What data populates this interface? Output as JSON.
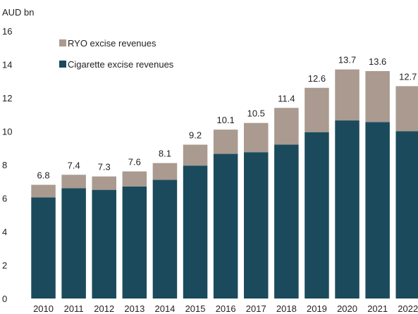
{
  "chart_data": {
    "type": "bar",
    "stacked": true,
    "unit_label": "AUD bn",
    "title": "",
    "xlabel": "",
    "ylabel": "",
    "categories": [
      "2010",
      "2011",
      "2012",
      "2013",
      "2014",
      "2015",
      "2016",
      "2017",
      "2018",
      "2019",
      "2020",
      "2021",
      "2022"
    ],
    "series": [
      {
        "name": "Cigarette excise revenues",
        "color": "#1b4a5c",
        "values": [
          6.05,
          6.6,
          6.5,
          6.7,
          7.1,
          7.95,
          8.65,
          8.75,
          9.2,
          9.95,
          10.65,
          10.55,
          10.0
        ]
      },
      {
        "name": "RYO excise revenues",
        "color": "#aa9a8f",
        "values": [
          0.75,
          0.8,
          0.8,
          0.9,
          1.0,
          1.25,
          1.45,
          1.75,
          2.2,
          2.65,
          3.05,
          3.05,
          2.7
        ]
      }
    ],
    "totals": [
      "6.8",
      "7.4",
      "7.3",
      "7.6",
      "8.1",
      "9.2",
      "10.1",
      "10.5",
      "11.4",
      "12.6",
      "13.7",
      "13.6",
      "12.7"
    ],
    "ylim": [
      0,
      16
    ],
    "yticks": [
      "0",
      "2",
      "4",
      "6",
      "8",
      "10",
      "12",
      "14",
      "16"
    ],
    "grid": false,
    "legend_position": "top-left",
    "legend_order": [
      1,
      0
    ]
  }
}
